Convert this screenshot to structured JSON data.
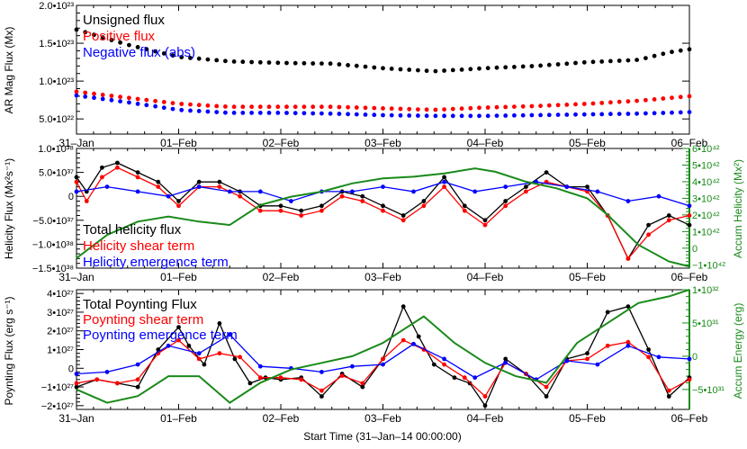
{
  "x_axis": {
    "days": [
      "31–Jan",
      "01–Feb",
      "02–Feb",
      "03–Feb",
      "04–Feb",
      "05–Feb",
      "06–Feb"
    ],
    "label": "Start Time (31–Jan–14 00:00:00)",
    "range_days": [
      0,
      6
    ]
  },
  "chart_data": [
    {
      "type": "scatter",
      "ylabel": "AR Mag Flux (Mx)",
      "ylim": [
        3e+22,
        2e+23
      ],
      "yticks": [
        {
          "v": 5e+22,
          "label": "5.0•10²²"
        },
        {
          "v": 1e+23,
          "label": "1.0•10²³"
        },
        {
          "v": 1.5e+23,
          "label": "1.5•10²³"
        },
        {
          "v": 2e+23,
          "label": "2.0•10²³"
        }
      ],
      "series": [
        {
          "name": "Unsigned flux",
          "color": "#000000",
          "x": [
            0,
            0.5,
            1,
            1.5,
            2,
            2.5,
            3,
            3.5,
            4,
            4.5,
            5,
            5.5,
            5.8,
            6
          ],
          "y": [
            1.68e+23,
            1.48e+23,
            1.32e+23,
            1.26e+23,
            1.24e+23,
            1.23e+23,
            1.17e+23,
            1.13e+23,
            1.17e+23,
            1.2e+23,
            1.25e+23,
            1.28e+23,
            1.38e+23,
            1.42e+23
          ]
        },
        {
          "name": "Positive flux",
          "color": "#ff0000",
          "x": [
            0,
            0.5,
            1,
            1.5,
            2,
            2.5,
            3,
            3.5,
            4,
            4.5,
            5,
            5.5,
            6
          ],
          "y": [
            8.6e+22,
            7.8e+22,
            7e+22,
            6.6e+22,
            6.6e+22,
            6.6e+22,
            6.4e+22,
            6.2e+22,
            6.5e+22,
            6.7e+22,
            7e+22,
            7.4e+22,
            8e+22
          ]
        },
        {
          "name": "Negative flux (abs)",
          "color": "#0000ff",
          "x": [
            0,
            0.5,
            1,
            1.5,
            2,
            2.5,
            3,
            3.5,
            4,
            4.5,
            5,
            5.5,
            6
          ],
          "y": [
            8.1e+22,
            7.2e+22,
            6.2e+22,
            5.8e+22,
            5.8e+22,
            5.7e+22,
            5.5e+22,
            5.4e+22,
            5.4e+22,
            5.5e+22,
            5.6e+22,
            5.7e+22,
            5.9e+22
          ]
        }
      ]
    },
    {
      "type": "line",
      "ylabel": "Helicity Flux (Mx²s⁻¹)",
      "ylim": [
        -1.5e+38,
        1e+38
      ],
      "yticks": [
        {
          "v": -1.5e+38,
          "label": "−1.5•10³⁸"
        },
        {
          "v": -1e+38,
          "label": "−1.0•10³⁸"
        },
        {
          "v": -5e+37,
          "label": "−5.0•10³⁷"
        },
        {
          "v": 0,
          "label": "0"
        },
        {
          "v": 5e+37,
          "label": "5.0•10³⁷"
        },
        {
          "v": 1e+38,
          "label": "1.0•10³⁸"
        }
      ],
      "y2label": "Accum Helicity (Mx²)",
      "y2lim": [
        -1.2e+42,
        6e+42
      ],
      "y2ticks": [
        {
          "v": -1e+42,
          "label": "−1•10⁴²"
        },
        {
          "v": 0,
          "label": "0"
        },
        {
          "v": 1e+42,
          "label": "1•10⁴²"
        },
        {
          "v": 2e+42,
          "label": "2•10⁴²"
        },
        {
          "v": 3e+42,
          "label": "3•10⁴²"
        },
        {
          "v": 4e+42,
          "label": "4•10⁴²"
        },
        {
          "v": 5e+42,
          "label": "5•10⁴²"
        },
        {
          "v": 6e+42,
          "label": "6•10⁴²"
        }
      ],
      "series": [
        {
          "name": "Total helicity flux",
          "color": "#000000",
          "x": [
            0,
            0.1,
            0.25,
            0.4,
            0.6,
            0.8,
            1.0,
            1.2,
            1.4,
            1.6,
            1.8,
            2.0,
            2.2,
            2.4,
            2.6,
            2.8,
            3.0,
            3.2,
            3.4,
            3.6,
            3.8,
            4.0,
            4.2,
            4.4,
            4.6,
            4.8,
            5.0,
            5.2,
            5.4,
            5.6,
            5.8,
            6.0
          ],
          "y": [
            4e+37,
            1e+37,
            6e+37,
            7e+37,
            5e+37,
            3e+37,
            -1e+37,
            3e+37,
            3e+37,
            1e+37,
            -2e+37,
            -2e+37,
            -3e+37,
            -2e+37,
            1e+37,
            0,
            -2e+37,
            -4e+37,
            -1e+37,
            4e+37,
            -2e+37,
            -5e+37,
            -1e+37,
            2e+37,
            5e+37,
            2e+37,
            2e+37,
            -4e+37,
            -1.3e+38,
            -6e+37,
            -4e+37,
            -6e+37
          ]
        },
        {
          "name": "Helicity shear term",
          "color": "#ff0000",
          "x": [
            0,
            0.1,
            0.25,
            0.4,
            0.6,
            0.8,
            1.0,
            1.2,
            1.4,
            1.6,
            1.8,
            2.0,
            2.2,
            2.4,
            2.6,
            2.8,
            3.0,
            3.2,
            3.4,
            3.6,
            3.8,
            4.0,
            4.2,
            4.4,
            4.6,
            4.8,
            5.0,
            5.2,
            5.4,
            5.6,
            5.8,
            6.0
          ],
          "y": [
            3e+37,
            -1e+37,
            4e+37,
            6e+37,
            4e+37,
            2e+37,
            -2e+37,
            2e+37,
            2e+37,
            0,
            -3e+37,
            -3e+37,
            -4e+37,
            -3e+37,
            0,
            -1e+37,
            -3e+37,
            -5e+37,
            -2e+37,
            2e+37,
            -3e+37,
            -6e+37,
            -2e+37,
            1e+37,
            3e+37,
            2e+37,
            1e+37,
            -4e+37,
            -1.3e+38,
            -8e+37,
            -5e+37,
            -4e+37
          ]
        },
        {
          "name": "Helicity emergence term",
          "color": "#0000ff",
          "x": [
            0,
            0.3,
            0.6,
            0.9,
            1.2,
            1.5,
            1.8,
            2.1,
            2.4,
            2.7,
            3.0,
            3.3,
            3.6,
            3.9,
            4.2,
            4.5,
            4.8,
            5.1,
            5.4,
            5.7,
            6.0
          ],
          "y": [
            1e+37,
            2e+37,
            1e+37,
            0,
            2e+37,
            1e+37,
            1e+37,
            -1e+37,
            1e+37,
            1e+37,
            2e+37,
            1e+37,
            3e+37,
            1e+37,
            2e+37,
            3e+37,
            2e+37,
            1e+37,
            -1e+37,
            0,
            -2e+37
          ]
        },
        {
          "name": "Accum Helicity",
          "color": "#1a8a1a",
          "axis": "y2",
          "x": [
            0,
            0.3,
            0.6,
            0.9,
            1.2,
            1.5,
            1.8,
            2.1,
            2.4,
            2.7,
            3.0,
            3.3,
            3.6,
            3.9,
            4.1,
            4.4,
            4.7,
            5.0,
            5.2,
            5.5,
            5.8,
            6.0
          ],
          "y": [
            -6e+41,
            8e+41,
            1.6e+42,
            1.9e+42,
            1.6e+42,
            1.4e+42,
            2.6e+42,
            3.1e+42,
            3.4e+42,
            3.9e+42,
            4.2e+42,
            4.3e+42,
            4.5e+42,
            4.8e+42,
            4.6e+42,
            4e+42,
            3.6e+42,
            3e+42,
            2e+42,
            2e+41,
            -8e+41,
            -1.1e+42
          ]
        }
      ]
    },
    {
      "type": "line",
      "ylabel": "Poynting Flux (erg s⁻¹)",
      "xlabel": "Start Time (31–Jan–14 00:00:00)",
      "ylim": [
        -2.2e+27,
        4.2e+27
      ],
      "yticks": [
        {
          "v": -2e+27,
          "label": "−2•10²⁷"
        },
        {
          "v": -1e+27,
          "label": "−1•10²⁷"
        },
        {
          "v": 0,
          "label": "0"
        },
        {
          "v": 1e+27,
          "label": "1•10²⁷"
        },
        {
          "v": 2e+27,
          "label": "2•10²⁷"
        },
        {
          "v": 3e+27,
          "label": "3•10²⁷"
        },
        {
          "v": 4e+27,
          "label": "4•10²⁷"
        }
      ],
      "y2label": "Accum Energy (erg)",
      "y2lim": [
        -8e+31,
        1e+32
      ],
      "y2ticks": [
        {
          "v": -5e+31,
          "label": "−5•10³¹"
        },
        {
          "v": 0,
          "label": "0"
        },
        {
          "v": 5e+31,
          "label": "5•10³¹"
        },
        {
          "v": 1e+32,
          "label": "1•10³²"
        }
      ],
      "series": [
        {
          "name": "Total Poynting Flux",
          "color": "#000000",
          "x": [
            0,
            0.2,
            0.4,
            0.6,
            0.8,
            1.0,
            1.1,
            1.25,
            1.4,
            1.55,
            1.7,
            1.85,
            2.0,
            2.2,
            2.4,
            2.6,
            2.8,
            3.0,
            3.2,
            3.35,
            3.5,
            3.7,
            3.85,
            4.0,
            4.2,
            4.4,
            4.6,
            4.8,
            5.0,
            5.2,
            5.4,
            5.6,
            5.8,
            6.0
          ],
          "y": [
            -1e+27,
            -6e+26,
            -8e+26,
            -1e+27,
            1e+27,
            2.2e+27,
            1.2e+27,
            2e+26,
            2.4e+27,
            5e+26,
            -8e+26,
            -5e+26,
            -6e+26,
            -5e+26,
            -1.5e+27,
            -3e+26,
            -1e+27,
            5e+26,
            3.3e+27,
            1.7e+27,
            2e+26,
            -5e+26,
            -8e+26,
            -2e+27,
            5e+26,
            -3e+26,
            -1.5e+27,
            5e+26,
            8e+26,
            3e+27,
            3.3e+27,
            1e+27,
            -1.5e+27,
            -5e+26
          ]
        },
        {
          "name": "Poynting shear term",
          "color": "#ff0000",
          "x": [
            0,
            0.2,
            0.4,
            0.6,
            0.8,
            1.0,
            1.2,
            1.4,
            1.6,
            1.8,
            2.0,
            2.2,
            2.4,
            2.6,
            2.8,
            3.0,
            3.2,
            3.4,
            3.6,
            3.8,
            4.0,
            4.2,
            4.4,
            4.6,
            4.8,
            5.0,
            5.2,
            5.4,
            5.6,
            5.8,
            6.0
          ],
          "y": [
            -8e+26,
            -6e+26,
            -8e+26,
            -6e+26,
            8e+26,
            1.5e+27,
            5e+26,
            8e+26,
            6e+26,
            -5e+26,
            -5e+26,
            -6e+26,
            -1.2e+27,
            -4e+26,
            -8e+26,
            5e+26,
            1.5e+27,
            1e+27,
            2e+26,
            -5e+26,
            -1.5e+27,
            3e+26,
            -3e+26,
            -1e+27,
            4e+26,
            5e+26,
            1.2e+27,
            1.4e+27,
            6e+26,
            -1.2e+27,
            -6e+26
          ]
        },
        {
          "name": "Poynting emergence term",
          "color": "#0000ff",
          "x": [
            0,
            0.3,
            0.6,
            0.9,
            1.2,
            1.5,
            1.8,
            2.1,
            2.4,
            2.7,
            3.0,
            3.3,
            3.6,
            3.9,
            4.2,
            4.5,
            4.8,
            5.1,
            5.4,
            5.7,
            6.0
          ],
          "y": [
            -3e+26,
            -2e+26,
            2e+26,
            1.2e+27,
            8e+26,
            1.8e+27,
            1e+26,
            0,
            -2e+26,
            1e+26,
            2e+26,
            1.3e+27,
            5e+26,
            -5e+26,
            3e+26,
            -6e+26,
            4e+26,
            2e+26,
            1.2e+27,
            6e+26,
            5e+26
          ]
        },
        {
          "name": "Accum Energy",
          "color": "#1a8a1a",
          "axis": "y2",
          "x": [
            0,
            0.3,
            0.6,
            0.9,
            1.2,
            1.5,
            1.8,
            2.1,
            2.4,
            2.7,
            3.0,
            3.2,
            3.4,
            3.7,
            4.0,
            4.3,
            4.6,
            4.9,
            5.2,
            5.5,
            5.8,
            6.0
          ],
          "y": [
            -5e+31,
            -7e+31,
            -6e+31,
            -3e+31,
            -3e+31,
            -7e+31,
            -4e+31,
            -2e+31,
            -1e+31,
            0,
            2e+31,
            4e+31,
            6e+31,
            2e+31,
            -1e+31,
            -3e+31,
            -4e+31,
            2e+31,
            5e+31,
            8e+31,
            9e+31,
            1e+32
          ]
        }
      ]
    }
  ],
  "legends": {
    "panel1": [
      "Unsigned flux",
      "Positive flux",
      "Negative flux (abs)"
    ],
    "panel2": [
      "Total helicity flux",
      "Helicity shear term",
      "Helicity emergence term"
    ],
    "panel3": [
      "Total Poynting Flux",
      "Poynting shear term",
      "Poynting emergence term"
    ]
  },
  "colors": {
    "black": "#000000",
    "red": "#ff0000",
    "blue": "#0000ff",
    "green": "#1a8a1a"
  }
}
